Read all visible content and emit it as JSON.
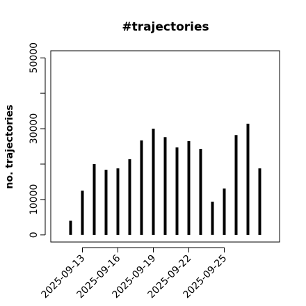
{
  "chart_data": {
    "type": "histogram-lines",
    "title": "#trajectories",
    "y_label": "no. trajectories",
    "x": [
      "2025-09-12",
      "2025-09-13",
      "2025-09-14",
      "2025-09-15",
      "2025-09-16",
      "2025-09-17",
      "2025-09-18",
      "2025-09-19",
      "2025-09-20",
      "2025-09-21",
      "2025-09-22",
      "2025-09-23",
      "2025-09-24",
      "2025-09-25",
      "2025-09-26",
      "2025-09-27",
      "2025-09-28"
    ],
    "values": [
      4000,
      12500,
      20000,
      18400,
      18800,
      21400,
      26700,
      30000,
      27600,
      24700,
      26500,
      24300,
      9400,
      13100,
      28200,
      31400,
      18800
    ],
    "color": "#000000",
    "xticks": [
      "2025-09-13",
      "2025-09-16",
      "2025-09-19",
      "2025-09-22",
      "2025-09-25"
    ],
    "ylim": [
      -2000,
      52000
    ],
    "yticks": [
      0,
      10000,
      30000,
      50000
    ],
    "yminor_ticks": [
      20000,
      40000
    ]
  }
}
